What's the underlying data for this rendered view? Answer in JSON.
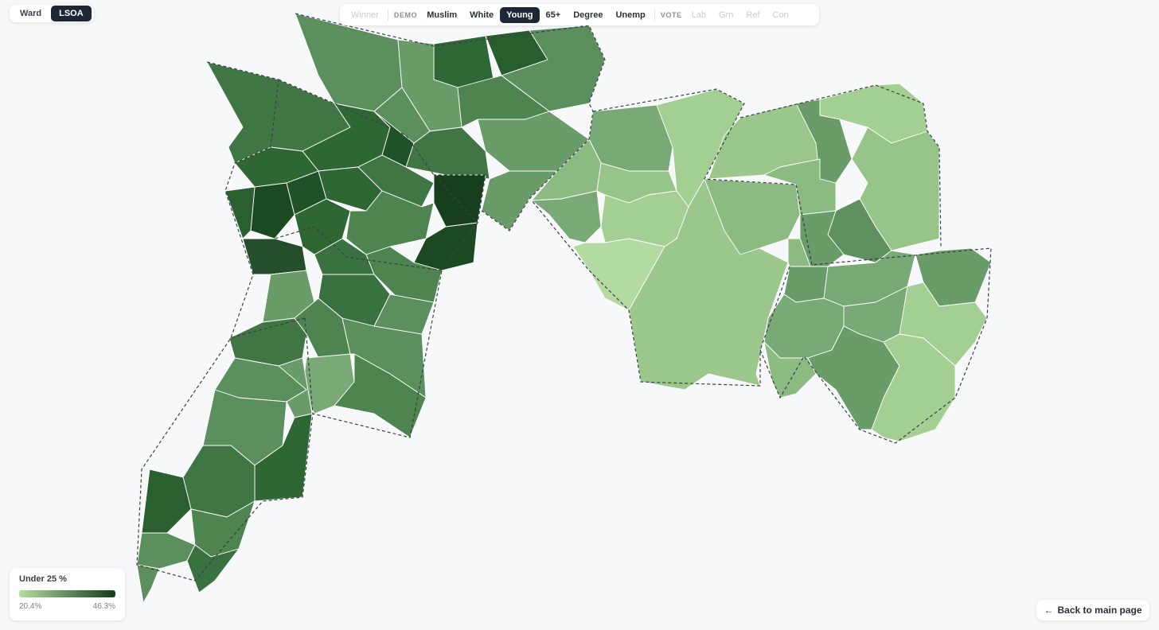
{
  "level_toggle": {
    "ward_label": "Ward",
    "lsoa_label": "LSOA",
    "active": "LSOA"
  },
  "layer_bar": {
    "winner_label": "Winner",
    "demo_group": "DEMO",
    "muslim_label": "Muslim",
    "white_label": "White",
    "young_label": "Young",
    "over65_label": "65+",
    "degree_label": "Degree",
    "unemp_label": "Unemp",
    "vote_group": "VOTE",
    "lab_label": "Lab",
    "grn_label": "Grn",
    "ref_label": "Ref",
    "con_label": "Con",
    "active": "Young"
  },
  "legend": {
    "title": "Under 25 %",
    "min_label": "20.4%",
    "max_label": "46.3%",
    "color_low": "#b6dba2",
    "color_high": "#123b1d"
  },
  "back_button": {
    "label": "Back to main page",
    "icon": "arrow-left-icon"
  }
}
